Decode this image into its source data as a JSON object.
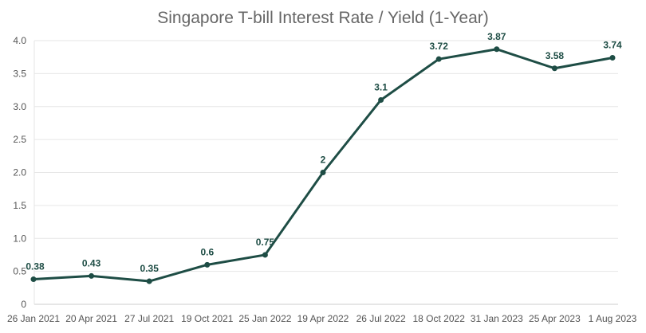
{
  "chart_data": {
    "type": "line",
    "title": "Singapore T-bill Interest Rate / Yield (1-Year)",
    "xlabel": "",
    "ylabel": "",
    "ylim": [
      0,
      4.0
    ],
    "yticks": [
      "0",
      "0.5",
      "1.0",
      "1.5",
      "2.0",
      "2.5",
      "3.0",
      "3.5",
      "4.0"
    ],
    "grid": true,
    "categories": [
      "26 Jan 2021",
      "20 Apr 2021",
      "27 Jul 2021",
      "19 Oct 2021",
      "25 Jan 2022",
      "19 Apr 2022",
      "26 Jul 2022",
      "18 Oct 2022",
      "31 Jan 2023",
      "25 Apr 2023",
      "1 Aug 2023"
    ],
    "series": [
      {
        "name": "Yield",
        "color": "#1e4d45",
        "values": [
          0.38,
          0.43,
          0.35,
          0.6,
          0.75,
          2,
          3.1,
          3.72,
          3.87,
          3.58,
          3.74
        ],
        "labels": [
          "0.38",
          "0.43",
          "0.35",
          "0.6",
          "0.75",
          "2",
          "3.1",
          "3.72",
          "3.87",
          "3.58",
          "3.74"
        ]
      }
    ]
  }
}
